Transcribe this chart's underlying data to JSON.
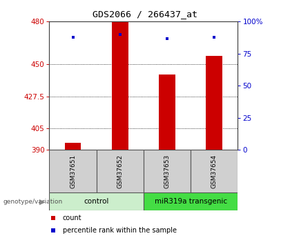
{
  "title": "GDS2066 / 266437_at",
  "samples": [
    "GSM37651",
    "GSM37652",
    "GSM37653",
    "GSM37654"
  ],
  "bar_values": [
    395,
    480,
    443,
    456
  ],
  "percentile_values": [
    469,
    471,
    468,
    469
  ],
  "y_min": 390,
  "y_max": 480,
  "yticks_left": [
    390,
    405,
    427.5,
    450,
    480
  ],
  "yticks_right": [
    0,
    25,
    50,
    75,
    100
  ],
  "bar_color": "#cc0000",
  "percentile_color": "#0000cc",
  "bar_width": 0.35,
  "group1_label": "control",
  "group2_label": "miR319a transgenic",
  "group1_color": "#cceecc",
  "group2_color": "#44dd44",
  "group_label_text": "genotype/variation",
  "legend_count_label": "count",
  "legend_percentile_label": "percentile rank within the sample",
  "left_tick_color": "#cc0000",
  "right_tick_color": "#0000cc",
  "sample_box_color": "#d0d0d0",
  "sample_box_edge_color": "#555555",
  "title_font": "monospace",
  "title_fontsize": 9.5
}
